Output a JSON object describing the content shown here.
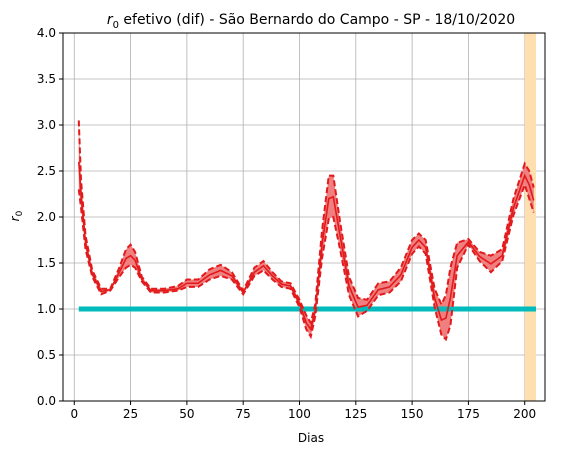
{
  "chart_data": {
    "type": "line",
    "title_symbol": "r",
    "title_symbol_sub": "0",
    "title_rest": " efetivo (dif) - São Bernardo do Campo - SP - 18/10/2020",
    "xlabel": "Dias",
    "ylabel_symbol": "r",
    "ylabel_sub": "0",
    "xlim": [
      -5,
      209
    ],
    "ylim": [
      0,
      4
    ],
    "xticks": [
      0,
      25,
      50,
      75,
      100,
      125,
      150,
      175,
      200
    ],
    "yticks": [
      0.0,
      0.5,
      1.0,
      1.5,
      2.0,
      2.5,
      3.0,
      3.5,
      4.0
    ],
    "ytick_labels": [
      "0.0",
      "0.5",
      "1.0",
      "1.5",
      "2.0",
      "2.5",
      "3.0",
      "3.5",
      "4.0"
    ],
    "grid": true,
    "highlight_band": {
      "x_start": 200,
      "x_end": 205,
      "color": "#ffdfb0"
    },
    "reference_line": {
      "y": 1.0,
      "x_start": 2,
      "x_end": 205,
      "color": "#00bbbb"
    },
    "colors": {
      "line": "#e31a1c",
      "fill": "#f08080",
      "grid": "#b0b0b0"
    },
    "series": [
      {
        "role": "upper",
        "x": [
          2,
          3,
          5,
          8,
          12,
          16,
          20,
          23,
          25,
          27,
          30,
          34,
          40,
          46,
          50,
          55,
          60,
          65,
          70,
          75,
          80,
          84,
          88,
          92,
          96,
          100,
          103,
          105,
          107,
          110,
          113,
          115,
          118,
          122,
          126,
          130,
          135,
          140,
          145,
          150,
          153,
          156,
          160,
          163,
          165,
          167,
          170,
          175,
          180,
          185,
          190,
          195,
          200,
          202,
          204
        ],
        "values": [
          3.05,
          2.4,
          1.8,
          1.42,
          1.22,
          1.22,
          1.45,
          1.65,
          1.7,
          1.62,
          1.35,
          1.22,
          1.22,
          1.25,
          1.32,
          1.32,
          1.43,
          1.48,
          1.4,
          1.2,
          1.45,
          1.52,
          1.4,
          1.3,
          1.28,
          1.1,
          0.93,
          0.85,
          1.05,
          1.85,
          2.45,
          2.45,
          1.95,
          1.35,
          1.12,
          1.1,
          1.28,
          1.3,
          1.45,
          1.75,
          1.82,
          1.75,
          1.22,
          1.05,
          1.15,
          1.45,
          1.72,
          1.76,
          1.62,
          1.58,
          1.65,
          2.2,
          2.58,
          2.5,
          2.32
        ]
      },
      {
        "role": "lower",
        "x": [
          2,
          3,
          5,
          8,
          12,
          16,
          20,
          23,
          25,
          27,
          30,
          34,
          40,
          46,
          50,
          55,
          60,
          65,
          70,
          75,
          80,
          84,
          88,
          92,
          96,
          100,
          103,
          105,
          107,
          110,
          113,
          115,
          118,
          122,
          126,
          130,
          135,
          140,
          145,
          150,
          153,
          156,
          160,
          163,
          165,
          167,
          170,
          175,
          180,
          185,
          190,
          195,
          200,
          202,
          204
        ],
        "values": [
          2.3,
          2.1,
          1.65,
          1.35,
          1.16,
          1.2,
          1.35,
          1.45,
          1.48,
          1.45,
          1.3,
          1.18,
          1.18,
          1.2,
          1.24,
          1.24,
          1.32,
          1.36,
          1.32,
          1.16,
          1.36,
          1.42,
          1.32,
          1.24,
          1.22,
          1.02,
          0.78,
          0.7,
          0.92,
          1.55,
          1.98,
          2.0,
          1.65,
          1.15,
          0.92,
          0.98,
          1.15,
          1.18,
          1.3,
          1.6,
          1.68,
          1.6,
          1.02,
          0.72,
          0.67,
          0.82,
          1.45,
          1.7,
          1.52,
          1.4,
          1.52,
          2.02,
          2.35,
          2.2,
          2.05
        ]
      },
      {
        "role": "center",
        "x": [
          2,
          3,
          5,
          8,
          12,
          16,
          20,
          23,
          25,
          27,
          30,
          34,
          40,
          46,
          50,
          55,
          60,
          65,
          70,
          75,
          80,
          84,
          88,
          92,
          96,
          100,
          103,
          105,
          107,
          110,
          113,
          115,
          118,
          122,
          126,
          130,
          135,
          140,
          145,
          150,
          153,
          156,
          160,
          163,
          165,
          167,
          170,
          175,
          180,
          185,
          190,
          195,
          200,
          202,
          204
        ],
        "values": [
          2.6,
          2.25,
          1.72,
          1.38,
          1.19,
          1.21,
          1.4,
          1.55,
          1.58,
          1.53,
          1.32,
          1.2,
          1.2,
          1.22,
          1.28,
          1.28,
          1.37,
          1.42,
          1.36,
          1.18,
          1.4,
          1.47,
          1.36,
          1.27,
          1.25,
          1.06,
          0.85,
          0.78,
          0.98,
          1.7,
          2.2,
          2.22,
          1.8,
          1.25,
          1.02,
          1.04,
          1.21,
          1.24,
          1.37,
          1.67,
          1.75,
          1.67,
          1.12,
          0.88,
          0.9,
          1.12,
          1.58,
          1.73,
          1.57,
          1.49,
          1.58,
          2.1,
          2.45,
          2.35,
          2.18
        ]
      }
    ]
  }
}
